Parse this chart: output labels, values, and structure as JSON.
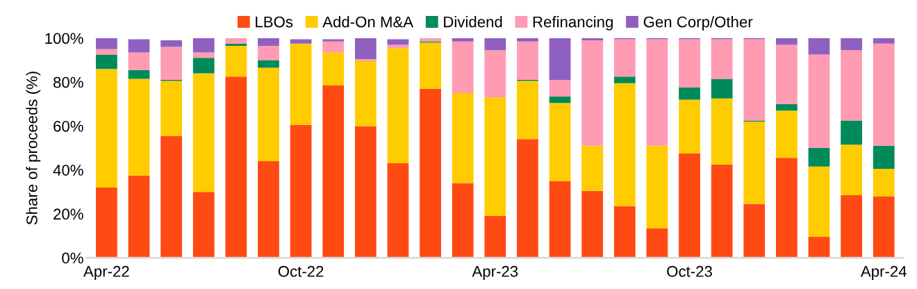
{
  "chart_data": {
    "type": "bar",
    "stacked": true,
    "ylabel": "Share of proceeds (%)",
    "categories": [
      "Apr-22",
      null,
      null,
      null,
      null,
      null,
      "Oct-22",
      null,
      null,
      null,
      null,
      null,
      "Apr-23",
      null,
      null,
      null,
      null,
      null,
      "Oct-23",
      null,
      null,
      null,
      null,
      null,
      "Apr-24"
    ],
    "series": [
      {
        "name": "LBOs",
        "color": "#ff4a14",
        "values": [
          32,
          37.5,
          55.5,
          30,
          82.5,
          44,
          60.5,
          78.5,
          60,
          43,
          77,
          34,
          19,
          54,
          35,
          30.5,
          23.5,
          13.5,
          47.5,
          42.5,
          24.5,
          45.5,
          9.5,
          28.5,
          28
        ]
      },
      {
        "name": "Add-On M&A",
        "color": "#ffcc00",
        "values": [
          54,
          44,
          25,
          54,
          14,
          42.5,
          37,
          15,
          29.5,
          52.5,
          21,
          41,
          54,
          26.5,
          35.5,
          20.5,
          56,
          37.5,
          24.5,
          30,
          37.5,
          21.5,
          32,
          23,
          12.5
        ]
      },
      {
        "name": "Dividend",
        "color": "#008a5a",
        "values": [
          6.5,
          4,
          0.5,
          7,
          1,
          3.5,
          0,
          0,
          0,
          0,
          0.5,
          0,
          0,
          0.5,
          3,
          0,
          3,
          0,
          5.5,
          9,
          0.5,
          3,
          8.5,
          11,
          10.5
        ]
      },
      {
        "name": "Refinancing",
        "color": "#ff9bb3",
        "values": [
          2.5,
          8,
          15,
          2.5,
          2.5,
          6.5,
          0,
          5,
          1,
          1.5,
          1.5,
          23.5,
          21.5,
          17.5,
          7.5,
          48,
          17,
          48.5,
          22,
          18,
          37,
          27,
          42.5,
          32,
          46.5
        ]
      },
      {
        "name": "Gen Corp/Other",
        "color": "#9060c0",
        "values": [
          5,
          6,
          3,
          6.5,
          0,
          3.5,
          2,
          1,
          9.5,
          2.5,
          0,
          1.5,
          5.5,
          1.5,
          19,
          1,
          0.5,
          0.5,
          0.5,
          0.5,
          0.5,
          3,
          7.5,
          5.5,
          2.5
        ]
      }
    ],
    "ylim": [
      0,
      100
    ],
    "yticks": [
      {
        "value": 0,
        "label": "0%"
      },
      {
        "value": 20,
        "label": "20%"
      },
      {
        "value": 40,
        "label": "40%"
      },
      {
        "value": 60,
        "label": "60%"
      },
      {
        "value": 80,
        "label": "80%"
      },
      {
        "value": 100,
        "label": "100%"
      }
    ],
    "legend": "top",
    "grid": false
  }
}
